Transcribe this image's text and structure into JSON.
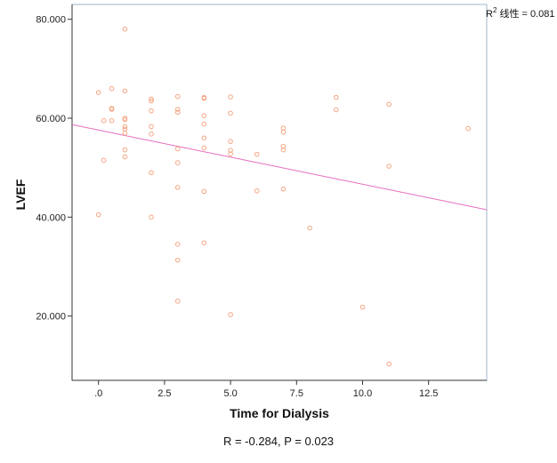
{
  "chart_data": {
    "type": "scatter",
    "xlabel": "Time for Dialysis",
    "ylabel": "LVEF",
    "xlim": [
      -1.0,
      14.7
    ],
    "ylim": [
      7,
      83
    ],
    "xticks": [
      0,
      2.5,
      5,
      7.5,
      10,
      12.5
    ],
    "xtick_labels": [
      ".0",
      "2.5",
      "5.0",
      "7.5",
      "10.0",
      "12.5"
    ],
    "yticks": [
      20,
      40,
      60,
      80
    ],
    "ytick_labels": [
      "20.000",
      "40.000",
      "60.000",
      "80.000"
    ],
    "points": [
      {
        "x": 0,
        "y": 65.2
      },
      {
        "x": 0,
        "y": 40.5
      },
      {
        "x": 0.2,
        "y": 59.5
      },
      {
        "x": 0.2,
        "y": 51.5
      },
      {
        "x": 0.5,
        "y": 66
      },
      {
        "x": 0.5,
        "y": 62
      },
      {
        "x": 0.5,
        "y": 61.8
      },
      {
        "x": 0.5,
        "y": 59.5
      },
      {
        "x": 1,
        "y": 78
      },
      {
        "x": 1,
        "y": 65.5
      },
      {
        "x": 1,
        "y": 60
      },
      {
        "x": 1,
        "y": 59.7
      },
      {
        "x": 1,
        "y": 58.3
      },
      {
        "x": 1,
        "y": 57.8
      },
      {
        "x": 1,
        "y": 57
      },
      {
        "x": 1,
        "y": 53.6
      },
      {
        "x": 1,
        "y": 52.2
      },
      {
        "x": 2,
        "y": 63.9
      },
      {
        "x": 2,
        "y": 63.5
      },
      {
        "x": 2,
        "y": 61.5
      },
      {
        "x": 2,
        "y": 58.3
      },
      {
        "x": 2,
        "y": 56.8
      },
      {
        "x": 2,
        "y": 49
      },
      {
        "x": 2,
        "y": 40
      },
      {
        "x": 3,
        "y": 64.4
      },
      {
        "x": 3,
        "y": 61.8
      },
      {
        "x": 3,
        "y": 61.2
      },
      {
        "x": 3,
        "y": 53.8
      },
      {
        "x": 3,
        "y": 51
      },
      {
        "x": 3,
        "y": 46
      },
      {
        "x": 3,
        "y": 34.5
      },
      {
        "x": 3,
        "y": 31.3
      },
      {
        "x": 3,
        "y": 23
      },
      {
        "x": 4,
        "y": 64.2
      },
      {
        "x": 4,
        "y": 64
      },
      {
        "x": 4,
        "y": 60.5
      },
      {
        "x": 4,
        "y": 58.8
      },
      {
        "x": 4,
        "y": 56
      },
      {
        "x": 4,
        "y": 54
      },
      {
        "x": 4,
        "y": 45.2
      },
      {
        "x": 4,
        "y": 34.8
      },
      {
        "x": 5,
        "y": 64.3
      },
      {
        "x": 5,
        "y": 61
      },
      {
        "x": 5,
        "y": 55.3
      },
      {
        "x": 5,
        "y": 53.5
      },
      {
        "x": 5,
        "y": 52.8
      },
      {
        "x": 5,
        "y": 20.3
      },
      {
        "x": 6,
        "y": 52.7
      },
      {
        "x": 6,
        "y": 45.3
      },
      {
        "x": 7,
        "y": 58
      },
      {
        "x": 7,
        "y": 57.2
      },
      {
        "x": 7,
        "y": 54.3
      },
      {
        "x": 7,
        "y": 53.6
      },
      {
        "x": 7,
        "y": 45.7
      },
      {
        "x": 8,
        "y": 37.8
      },
      {
        "x": 9,
        "y": 64.2
      },
      {
        "x": 9,
        "y": 61.7
      },
      {
        "x": 10,
        "y": 21.8
      },
      {
        "x": 11,
        "y": 62.8
      },
      {
        "x": 11,
        "y": 50.3
      },
      {
        "x": 11,
        "y": 10.3
      },
      {
        "x": 14,
        "y": 57.9
      }
    ],
    "fit_line": {
      "x": [
        -1.0,
        14.7
      ],
      "y": [
        58.7,
        41.5
      ]
    },
    "r2_text": "R",
    "r2_sup": "2",
    "r2_label": " 线性 = 0.081",
    "caption": "R = -0.284, P = 0.023",
    "colors": {
      "points": "#f4a582",
      "line": "#e66dbf",
      "frame": "#9fb4c8",
      "axis": "#333333"
    }
  }
}
